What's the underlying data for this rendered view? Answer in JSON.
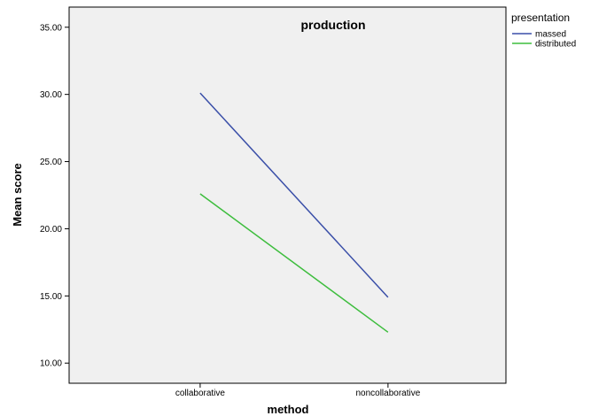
{
  "chart_data": {
    "type": "line",
    "title": "production",
    "xlabel": "method",
    "ylabel": "Mean score",
    "categories": [
      "collaborative",
      "noncollaborative"
    ],
    "ylim": [
      8.5,
      36.5
    ],
    "yticks": [
      "10.00",
      "15.00",
      "20.00",
      "25.00",
      "30.00",
      "35.00"
    ],
    "ytick_values": [
      10,
      15,
      20,
      25,
      30,
      35
    ],
    "grid": false,
    "legend": {
      "title": "presentation",
      "placement": "top-right outside"
    },
    "series": [
      {
        "name": "massed",
        "color": "#3a4fa8",
        "values": [
          30.1,
          14.9
        ]
      },
      {
        "name": "distributed",
        "color": "#3dbd3d",
        "values": [
          22.6,
          12.3
        ]
      }
    ]
  }
}
